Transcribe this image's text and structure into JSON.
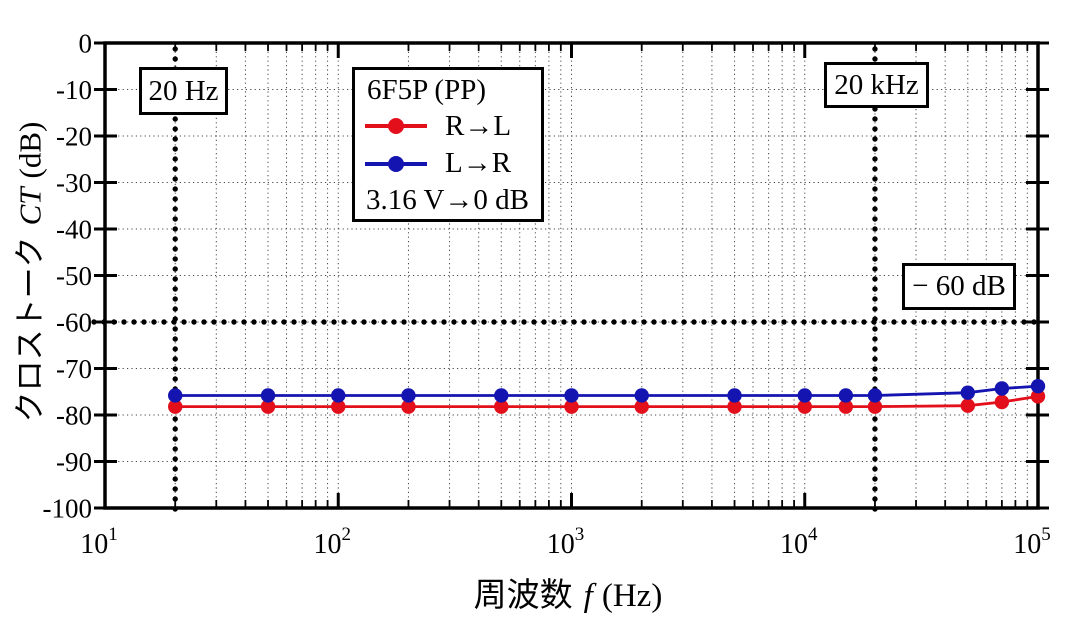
{
  "chart_data": {
    "type": "line",
    "title": "",
    "x_scale": "log",
    "xlim": [
      10,
      100000
    ],
    "ylim": [
      -100,
      0
    ],
    "grid": "dotted",
    "x_tick_base": "10",
    "x_tick_exponents": [
      1,
      2,
      3,
      4,
      5
    ],
    "y_ticks": [
      0,
      -10,
      -20,
      -30,
      -40,
      -50,
      -60,
      -70,
      -80,
      -90,
      -100
    ],
    "xlabel": {
      "pre": "周波数",
      "italic": "f",
      "post": "(Hz)"
    },
    "ylabel": {
      "pre": "クロストーク",
      "italic": "CT",
      "post": "(dB)"
    },
    "x": [
      20,
      50,
      100,
      200,
      500,
      1000,
      2000,
      5000,
      10000,
      15000,
      20000,
      50000,
      70000,
      100000
    ],
    "series": [
      {
        "name": "R→L",
        "color": "#e3101c",
        "values": [
          -78.2,
          -78.2,
          -78.2,
          -78.2,
          -78.2,
          -78.2,
          -78.2,
          -78.2,
          -78.2,
          -78.2,
          -78.2,
          -78.0,
          -77.2,
          -76.0
        ]
      },
      {
        "name": "L→R",
        "color": "#1414b0",
        "values": [
          -75.8,
          -75.8,
          -75.8,
          -75.8,
          -75.8,
          -75.8,
          -75.8,
          -75.8,
          -75.8,
          -75.8,
          -75.8,
          -75.2,
          -74.3,
          -73.8
        ]
      }
    ],
    "legend": {
      "title": "6F5P (PP)",
      "note": "3.16 V→0 dB",
      "position": "top-center"
    },
    "annotations": [
      {
        "text": "20 Hz"
      },
      {
        "text": "20 kHz"
      },
      {
        "text": "− 60 dB"
      }
    ],
    "reference_lines": {
      "vertical_hz": [
        20,
        20000
      ],
      "horizontal_db": [
        -60
      ]
    },
    "axis_color": "#000000"
  }
}
